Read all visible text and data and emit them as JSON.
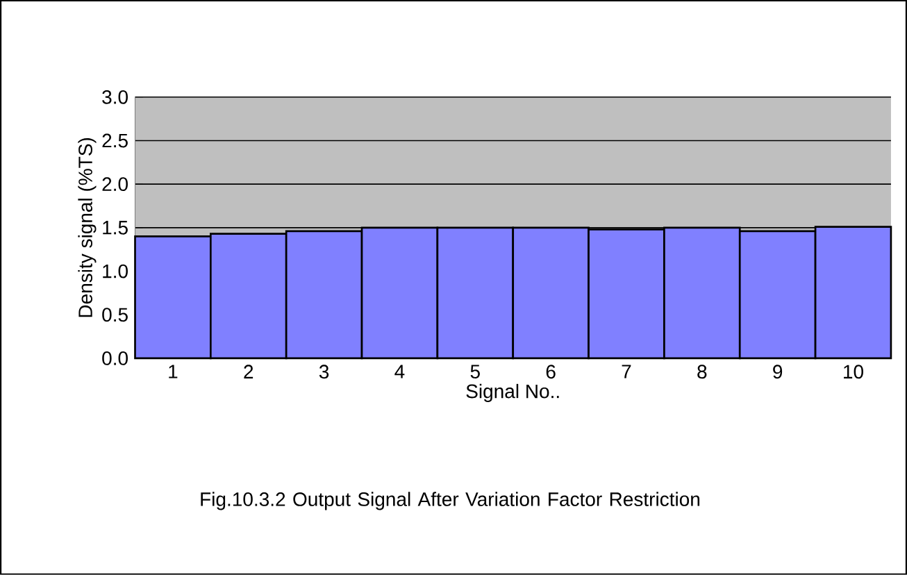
{
  "chart_data": {
    "type": "bar",
    "xlabel": "Signal No..",
    "ylabel": "Density signal (%TS)",
    "annotations": [
      "Fig.10.3.2  Output Signal After Variation Factor Restriction"
    ],
    "categories": [
      "1",
      "2",
      "3",
      "4",
      "5",
      "6",
      "7",
      "8",
      "9",
      "10"
    ],
    "values": [
      1.4,
      1.43,
      1.46,
      1.5,
      1.5,
      1.5,
      1.48,
      1.5,
      1.46,
      1.51
    ],
    "color": "#8080ff",
    "ylim": [
      0,
      3.0
    ],
    "yticks": [
      {
        "value": 0,
        "label": "0.0"
      },
      {
        "value": 0.5,
        "label": "0.5"
      },
      {
        "value": 1.0,
        "label": "1.0"
      },
      {
        "value": 1.5,
        "label": "1.5"
      },
      {
        "value": 2.0,
        "label": "2.0"
      },
      {
        "value": 2.5,
        "label": "2.5"
      },
      {
        "value": 3.0,
        "label": "3.0"
      }
    ],
    "grid": "y"
  }
}
